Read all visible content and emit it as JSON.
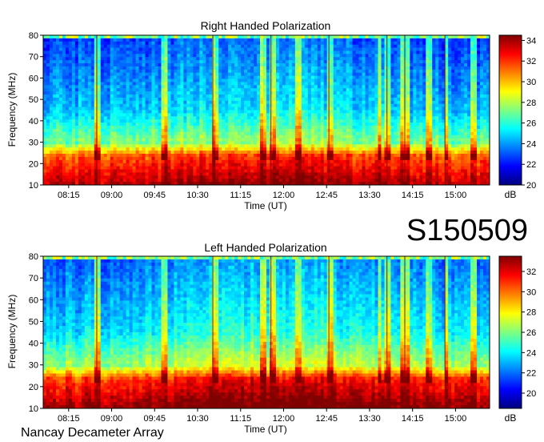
{
  "figure_id": "S150509",
  "credit": "Nancay Decameter Array",
  "chart_data": [
    {
      "type": "heatmap",
      "title": "Right Handed Polarization",
      "xlabel": "Time (UT)",
      "ylabel": "Frequency (MHz)",
      "x_ticks": [
        "08:15",
        "09:00",
        "09:45",
        "10:30",
        "11:15",
        "12:00",
        "12:45",
        "13:30",
        "14:15",
        "15:00"
      ],
      "y_ticks": [
        10,
        20,
        30,
        40,
        50,
        60,
        70,
        80
      ],
      "ylim": [
        10,
        80
      ],
      "colorbar": {
        "label": "dB",
        "ticks": [
          20,
          22,
          24,
          26,
          28,
          30,
          32,
          34
        ],
        "range": [
          20,
          34.5
        ]
      },
      "colormap": [
        "#00007f",
        "#0000ff",
        "#007fff",
        "#00ffff",
        "#7fff7f",
        "#ffff00",
        "#ff7f00",
        "#ff0000",
        "#7f0000"
      ]
    },
    {
      "type": "heatmap",
      "title": "Left Handed Polarization",
      "xlabel": "Time (UT)",
      "ylabel": "Frequency (MHz)",
      "x_ticks": [
        "08:15",
        "09:00",
        "09:45",
        "10:30",
        "11:15",
        "12:00",
        "12:45",
        "13:30",
        "14:15",
        "15:00"
      ],
      "y_ticks": [
        10,
        20,
        30,
        40,
        50,
        60,
        70,
        80
      ],
      "ylim": [
        10,
        80
      ],
      "colorbar": {
        "label": "dB",
        "ticks": [
          20,
          22,
          24,
          26,
          28,
          30,
          32
        ],
        "range": [
          18.5,
          33.5
        ]
      },
      "colormap": [
        "#00007f",
        "#0000ff",
        "#007fff",
        "#00ffff",
        "#7fff7f",
        "#ffff00",
        "#ff7f00",
        "#ff0000",
        "#7f0000"
      ]
    }
  ]
}
